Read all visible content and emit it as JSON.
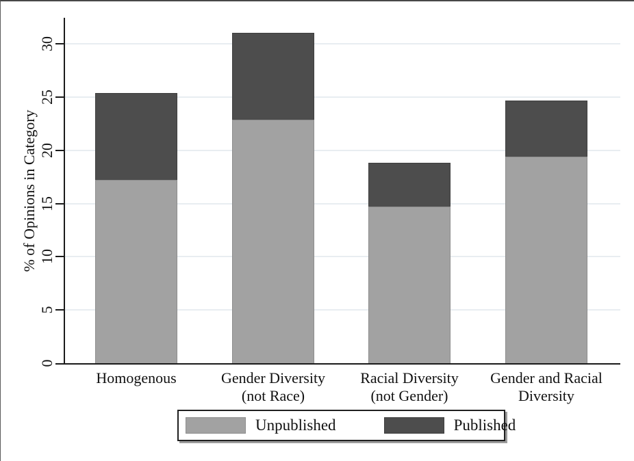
{
  "figure": {
    "background": "#ffffff",
    "frame_border_color": "#474747"
  },
  "chart_data": {
    "type": "bar",
    "stacked": true,
    "title": "",
    "xlabel": "",
    "ylabel": "% of Opinions in Category",
    "ylim": [
      0,
      32.4
    ],
    "yticks": [
      0,
      5,
      10,
      15,
      20,
      25,
      30
    ],
    "grid": "horizontal-light",
    "gridline_color": "#e8edf1",
    "axis_color": "#1a1a1a",
    "categories": [
      {
        "label": "Homogenous",
        "lines": [
          "Homogenous"
        ]
      },
      {
        "label": "Gender Diversity (not Race)",
        "lines": [
          "Gender Diversity",
          "(not Race)"
        ]
      },
      {
        "label": "Racial Diversity (not Gender)",
        "lines": [
          "Racial Diversity",
          "(not Gender)"
        ]
      },
      {
        "label": "Gender and Racial Diversity",
        "lines": [
          "Gender and Racial",
          "Diversity"
        ]
      }
    ],
    "series": [
      {
        "name": "Unpublished",
        "color": "#a2a2a2",
        "border_color": "#8d8d8d",
        "values": [
          17.2,
          22.9,
          14.7,
          19.4
        ]
      },
      {
        "name": "Published",
        "color": "#4d4d4d",
        "border_color": "#3e3e3e",
        "values": [
          8.2,
          8.1,
          4.1,
          5.3
        ]
      }
    ],
    "stack_totals": [
      25.4,
      31.0,
      18.8,
      24.7
    ],
    "legend": {
      "position": "bottom",
      "labels": [
        "Unpublished",
        "Published"
      ]
    }
  }
}
